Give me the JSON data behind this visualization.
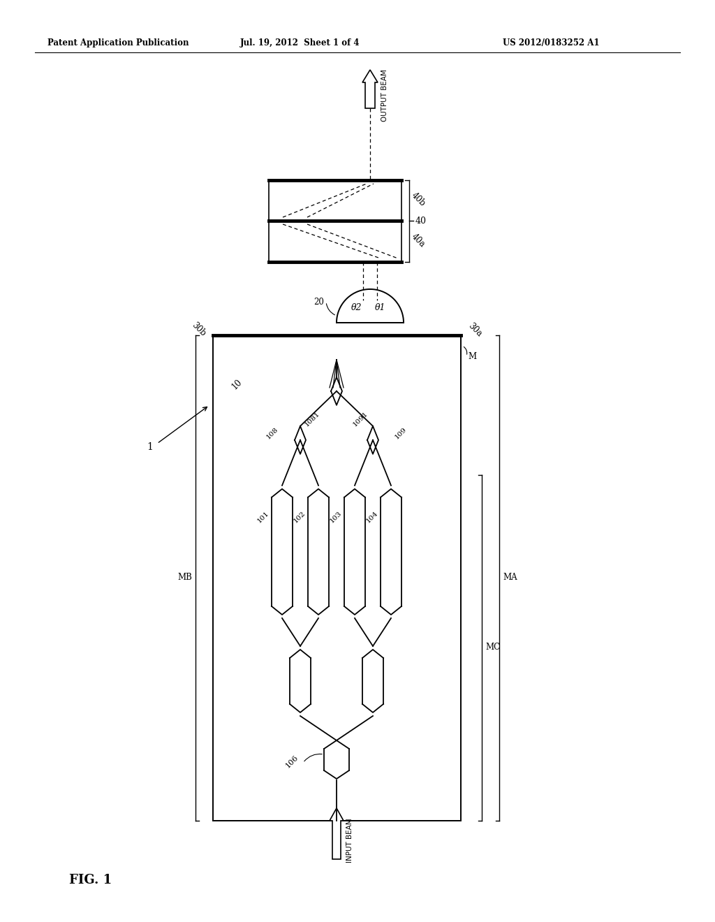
{
  "bg_color": "#ffffff",
  "line_color": "#000000",
  "text_color": "#000000",
  "header_left": "Patent Application Publication",
  "header_mid": "Jul. 19, 2012  Sheet 1 of 4",
  "header_right": "US 2012/0183252 A1",
  "fig_label": "FIG. 1",
  "label_1": "1",
  "label_10": "10",
  "label_20": "20",
  "label_30a": "30a",
  "label_30b": "30b",
  "label_40": "40",
  "label_40a": "40a",
  "label_40b": "40b",
  "label_101": "101",
  "label_102": "102",
  "label_103": "103",
  "label_104": "104",
  "label_106": "106",
  "label_108": "108",
  "label_1081": "1081",
  "label_109": "109",
  "label_1091": "1091",
  "label_M": "M",
  "label_MA": "MA",
  "label_MB": "MB",
  "label_MC": "MC",
  "label_theta1": "θ1",
  "label_theta2": "θ2",
  "input_beam": "INPUT BEAM",
  "output_beam": "OUTPUT BEAM"
}
